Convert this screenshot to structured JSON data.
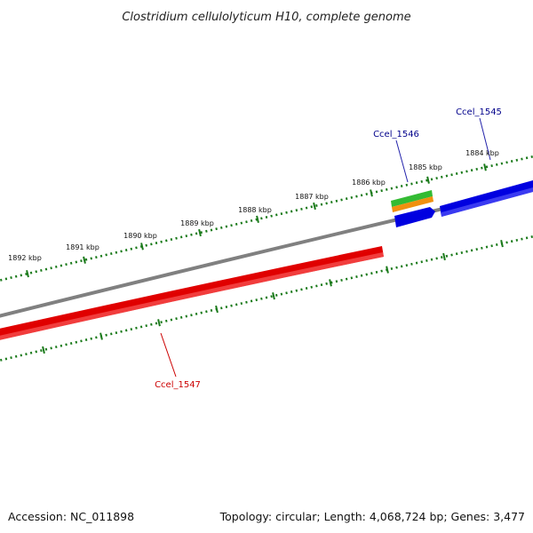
{
  "title": "Clostridium cellulolyticum H10, complete genome",
  "footer": {
    "accession": "Accession: NC_011898",
    "summary": "Topology: circular; Length: 4,068,724 bp; Genes: 3,477"
  },
  "colors": {
    "backbone": "#808080",
    "ruler": "#1a7a1a",
    "forward_gene": "#0000e0",
    "reverse_gene": "#e00000",
    "green_feature": "#33bb33",
    "orange_feature": "#f0900f",
    "label_forward": "#00008b",
    "label_reverse": "#cc0000",
    "leader_forward": "#2222aa",
    "leader_reverse": "#cc0000"
  },
  "ruler": {
    "unit": "kbp",
    "labels": [
      {
        "kbp": 1884,
        "text": "1884 kbp"
      },
      {
        "kbp": 1885,
        "text": "1885 kbp"
      },
      {
        "kbp": 1886,
        "text": "1886 kbp"
      },
      {
        "kbp": 1887,
        "text": "1887 kbp"
      },
      {
        "kbp": 1888,
        "text": "1888 kbp"
      },
      {
        "kbp": 1889,
        "text": "1889 kbp"
      },
      {
        "kbp": 1890,
        "text": "1890 kbp"
      },
      {
        "kbp": 1891,
        "text": "1891 kbp"
      },
      {
        "kbp": 1892,
        "text": "1892 kbp"
      }
    ]
  },
  "genes": [
    {
      "name": "Ccel_1545",
      "strand": "forward",
      "color": "label_forward"
    },
    {
      "name": "Ccel_1546",
      "strand": "forward",
      "color": "label_forward"
    },
    {
      "name": "Ccel_1547",
      "strand": "reverse",
      "color": "label_reverse"
    }
  ]
}
